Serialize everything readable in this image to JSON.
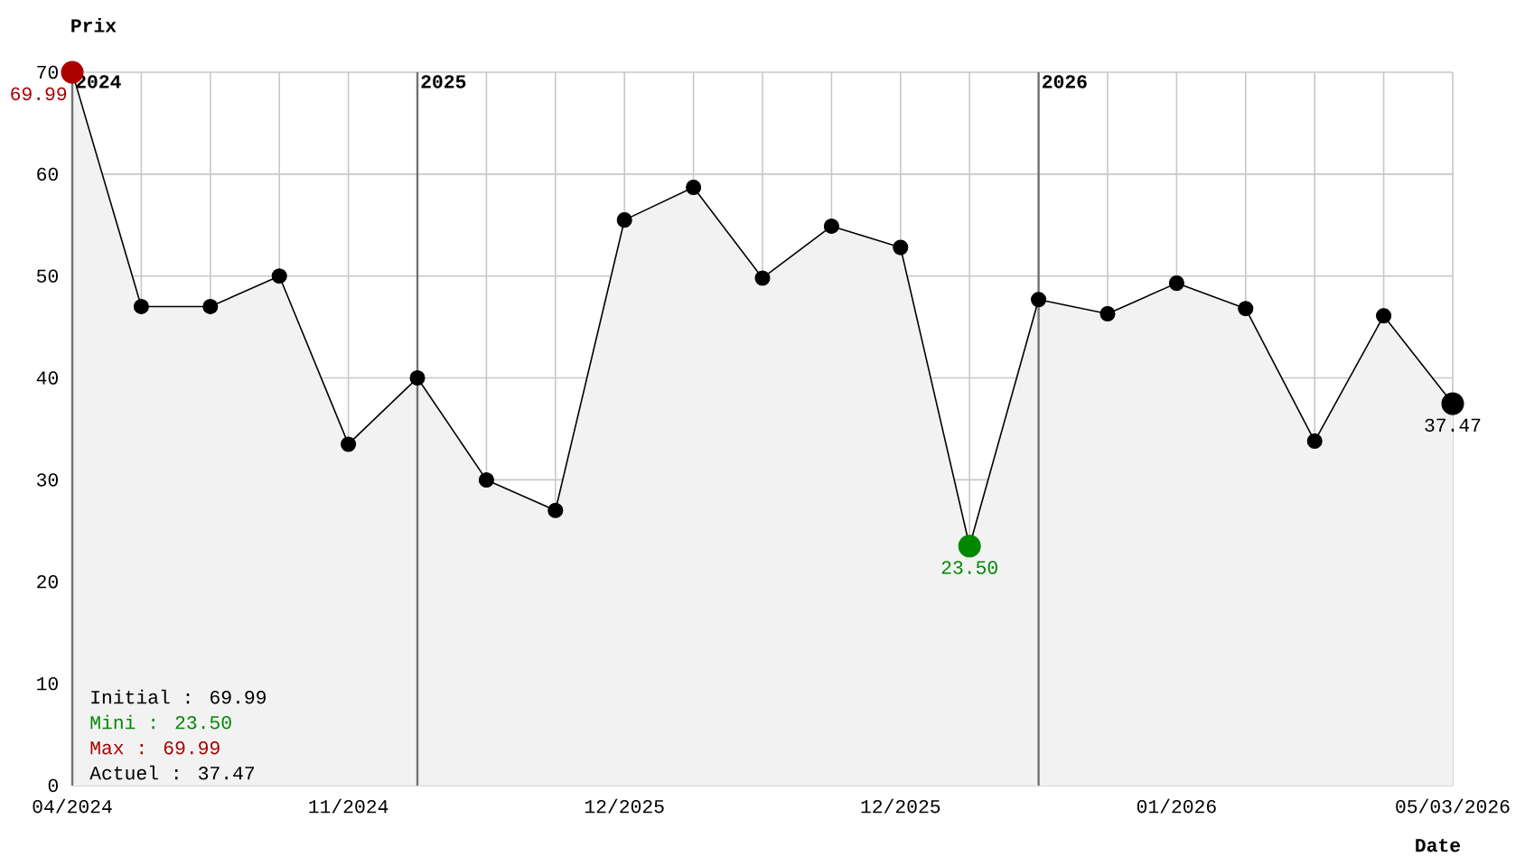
{
  "chart_data": {
    "type": "area",
    "xlabel": "Date",
    "ylabel": "Prix",
    "categories": [
      "04/2024",
      null,
      null,
      null,
      "11/2024",
      null,
      null,
      null,
      "12/2025",
      null,
      null,
      null,
      "12/2025",
      null,
      null,
      null,
      "01/2026",
      null,
      null,
      null,
      "05/03/2026"
    ],
    "series": [
      {
        "color": "#000000",
        "colors": [
          "#aa0000",
          "#000000",
          "#000000",
          "#000000",
          "#000000",
          "#000000",
          "#000000",
          "#000000",
          "#000000",
          "#000000",
          "#000000",
          "#000000",
          "#000000",
          "#008800",
          "#000000",
          "#000000",
          "#000000",
          "#000000",
          "#000000",
          "#000000",
          "#000000"
        ],
        "values": [
          69.99,
          47,
          47,
          50,
          33.5,
          40,
          30,
          27,
          55.5,
          58.7,
          49.8,
          54.9,
          52.8,
          23.5,
          47.7,
          46.3,
          49.3,
          46.8,
          33.8,
          46.1,
          37.47
        ],
        "value_labels": [
          "69.99",
          null,
          null,
          null,
          null,
          null,
          null,
          null,
          null,
          null,
          null,
          null,
          null,
          "23.50",
          null,
          null,
          null,
          null,
          null,
          null,
          "37.47"
        ]
      }
    ],
    "ylim": [
      0,
      70
    ],
    "yticks": [
      0,
      10,
      20,
      30,
      40,
      50,
      60,
      70
    ],
    "grid": true,
    "marker": "circle",
    "line_style": "solid",
    "annotations": [
      "Initial : 69.99",
      "Mini : 23.50",
      "Max : 69.99",
      "Actuel : 37.47",
      "2024",
      "2025",
      "2026"
    ]
  }
}
